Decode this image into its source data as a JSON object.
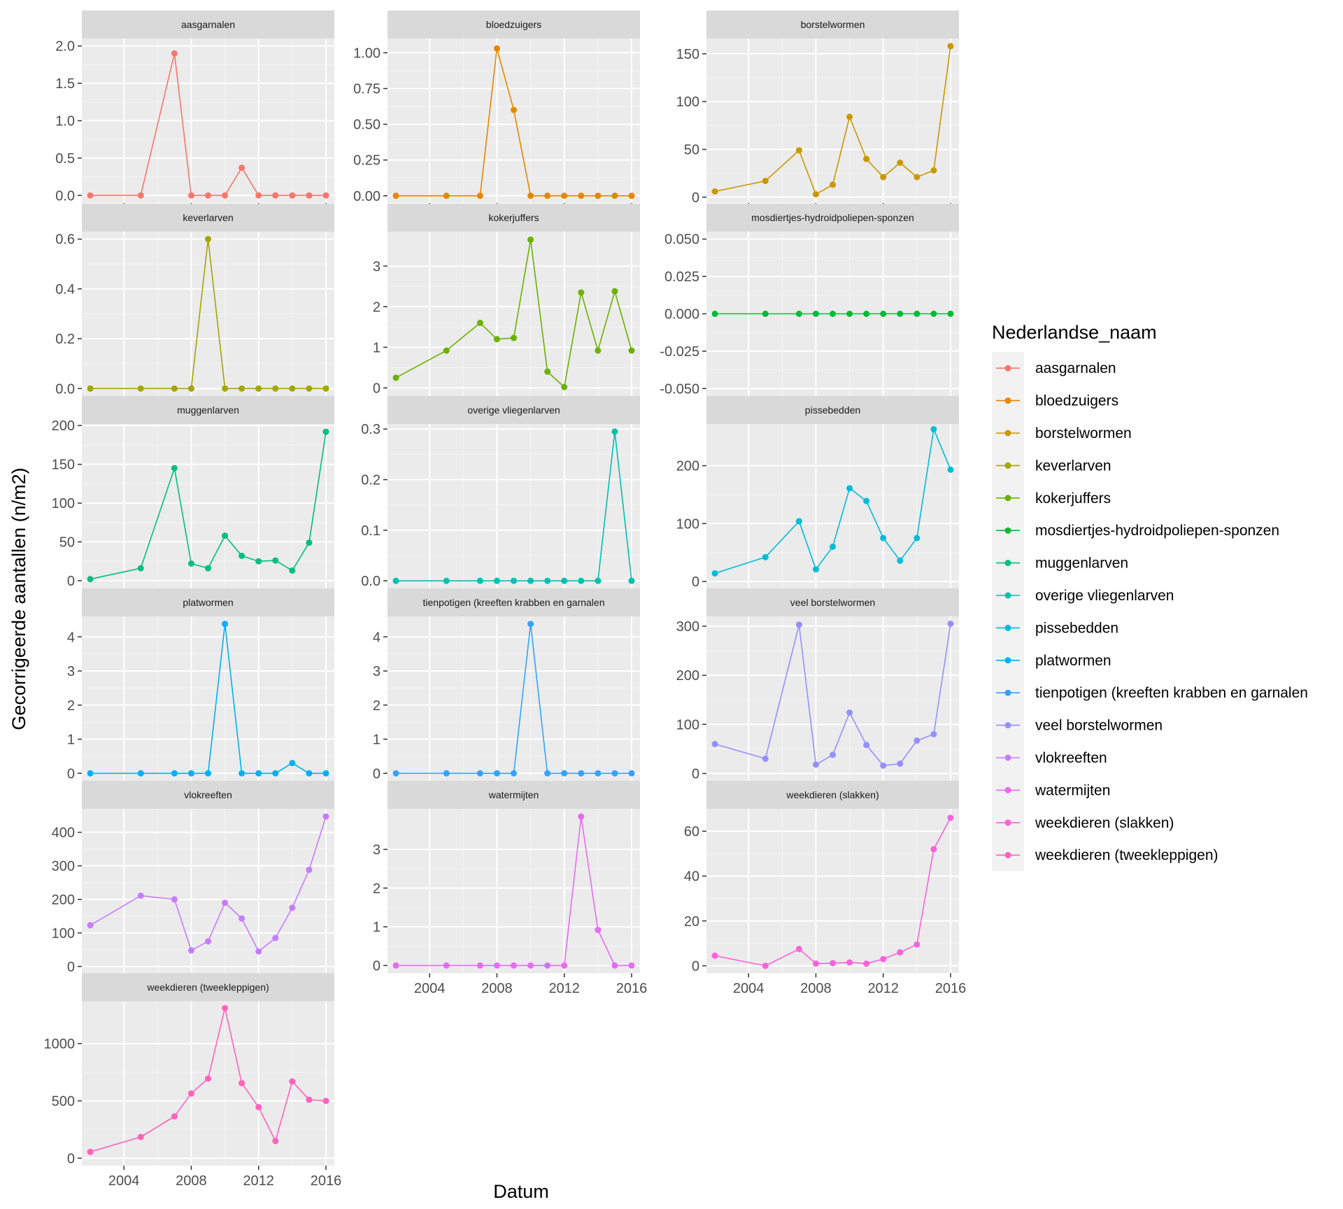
{
  "chart_data": {
    "type": "line",
    "facet": "wrap",
    "x_breaks": [
      2004,
      2008,
      2012,
      2016
    ],
    "xlim": [
      2001.5,
      2016.5
    ],
    "xlabel": "Datum",
    "ylabel": "Gecorrigeerde aantallen (n/m2)",
    "legend": {
      "title": "Nederlandse_naam",
      "position": "right"
    },
    "grid": true,
    "panels": [
      {
        "name": "aasgarnalen",
        "color": "#F8766D",
        "ylim": [
          -0.1,
          2.1
        ],
        "ticks": [
          {
            "v": 0,
            "l": "0.0"
          },
          {
            "v": 0.5,
            "l": "0.5"
          },
          {
            "v": 1,
            "l": "1.0"
          },
          {
            "v": 1.5,
            "l": "1.5"
          },
          {
            "v": 2,
            "l": "2.0"
          }
        ],
        "x": [
          2002,
          2005,
          2007,
          2008,
          2009,
          2010,
          2011,
          2012,
          2013,
          2014,
          2015,
          2016
        ],
        "y": [
          0,
          0,
          1.9,
          0,
          0,
          0,
          0.37,
          0,
          0,
          0,
          0,
          0
        ]
      },
      {
        "name": "bloedzuigers",
        "color": "#E58700",
        "ylim": [
          -0.05,
          1.1
        ],
        "ticks": [
          {
            "v": 0,
            "l": "0.00"
          },
          {
            "v": 0.25,
            "l": "0.25"
          },
          {
            "v": 0.5,
            "l": "0.50"
          },
          {
            "v": 0.75,
            "l": "0.75"
          },
          {
            "v": 1,
            "l": "1.00"
          }
        ],
        "x": [
          2002,
          2005,
          2007,
          2008,
          2009,
          2010,
          2011,
          2012,
          2013,
          2014,
          2015,
          2016
        ],
        "y": [
          0,
          0,
          0,
          1.03,
          0.6,
          0,
          0,
          0,
          0,
          0,
          0,
          0
        ]
      },
      {
        "name": "borstelwormen",
        "color": "#C99800",
        "ylim": [
          -6,
          166
        ],
        "ticks": [
          {
            "v": 0,
            "l": "0"
          },
          {
            "v": 50,
            "l": "50"
          },
          {
            "v": 100,
            "l": "100"
          },
          {
            "v": 150,
            "l": "150"
          }
        ],
        "x": [
          2002,
          2005,
          2007,
          2008,
          2009,
          2010,
          2011,
          2012,
          2013,
          2014,
          2015,
          2016
        ],
        "y": [
          6,
          17,
          49,
          3,
          13,
          84,
          40,
          21,
          36,
          21,
          28,
          158
        ]
      },
      {
        "name": "keverlarven",
        "color": "#A3A500",
        "ylim": [
          -0.03,
          0.63
        ],
        "ticks": [
          {
            "v": 0,
            "l": "0.0"
          },
          {
            "v": 0.2,
            "l": "0.2"
          },
          {
            "v": 0.4,
            "l": "0.4"
          },
          {
            "v": 0.6,
            "l": "0.6"
          }
        ],
        "x": [
          2002,
          2005,
          2007,
          2008,
          2009,
          2010,
          2011,
          2012,
          2013,
          2014,
          2015,
          2016
        ],
        "y": [
          0,
          0,
          0,
          0,
          0.6,
          0,
          0,
          0,
          0,
          0,
          0,
          0
        ]
      },
      {
        "name": "kokerjuffers",
        "color": "#6BB100",
        "ylim": [
          -0.2,
          3.85
        ],
        "ticks": [
          {
            "v": 0,
            "l": "0"
          },
          {
            "v": 1,
            "l": "1"
          },
          {
            "v": 2,
            "l": "2"
          },
          {
            "v": 3,
            "l": "3"
          }
        ],
        "x": [
          2002,
          2005,
          2007,
          2008,
          2009,
          2010,
          2011,
          2012,
          2013,
          2014,
          2015,
          2016
        ],
        "y": [
          0.25,
          0.92,
          1.6,
          1.2,
          1.23,
          3.65,
          0.4,
          0.02,
          2.35,
          0.92,
          2.38,
          0.92
        ]
      },
      {
        "name": "mosdiertjes-hydroidpoliepen-sponzen",
        "color": "#00BA38",
        "ylim": [
          -0.055,
          0.055
        ],
        "ticks": [
          {
            "v": -0.05,
            "l": "-0.050"
          },
          {
            "v": -0.025,
            "l": "-0.025"
          },
          {
            "v": 0,
            "l": "0.000"
          },
          {
            "v": 0.025,
            "l": "0.025"
          },
          {
            "v": 0.05,
            "l": "0.050"
          }
        ],
        "x": [
          2002,
          2005,
          2007,
          2008,
          2009,
          2010,
          2011,
          2012,
          2013,
          2014,
          2015,
          2016
        ],
        "y": [
          0,
          0,
          0,
          0,
          0,
          0,
          0,
          0,
          0,
          0,
          0,
          0
        ]
      },
      {
        "name": "muggenlarven",
        "color": "#00BF7D",
        "ylim": [
          -10,
          202
        ],
        "ticks": [
          {
            "v": 0,
            "l": "0"
          },
          {
            "v": 50,
            "l": "50"
          },
          {
            "v": 100,
            "l": "100"
          },
          {
            "v": 150,
            "l": "150"
          },
          {
            "v": 200,
            "l": "200"
          }
        ],
        "x": [
          2002,
          2005,
          2007,
          2008,
          2009,
          2010,
          2011,
          2012,
          2013,
          2014,
          2015,
          2016
        ],
        "y": [
          2,
          16,
          145,
          22,
          16,
          58,
          32,
          25,
          26,
          13,
          49,
          192
        ]
      },
      {
        "name": "overige vliegenlarven",
        "color": "#00C0AF",
        "ylim": [
          -0.015,
          0.31
        ],
        "ticks": [
          {
            "v": 0,
            "l": "0.0"
          },
          {
            "v": 0.1,
            "l": "0.1"
          },
          {
            "v": 0.2,
            "l": "0.2"
          },
          {
            "v": 0.3,
            "l": "0.3"
          }
        ],
        "x": [
          2002,
          2005,
          2007,
          2008,
          2009,
          2010,
          2011,
          2012,
          2013,
          2014,
          2015,
          2016
        ],
        "y": [
          0,
          0,
          0,
          0,
          0,
          0,
          0,
          0,
          0,
          0,
          0.295,
          0
        ]
      },
      {
        "name": "pissebedden",
        "color": "#00BCD8",
        "ylim": [
          -12,
          272
        ],
        "ticks": [
          {
            "v": 0,
            "l": "0"
          },
          {
            "v": 100,
            "l": "100"
          },
          {
            "v": 200,
            "l": "200"
          }
        ],
        "x": [
          2002,
          2005,
          2007,
          2008,
          2009,
          2010,
          2011,
          2012,
          2013,
          2014,
          2015,
          2016
        ],
        "y": [
          14,
          42,
          104,
          21,
          60,
          161,
          139,
          75,
          36,
          75,
          263,
          193
        ]
      },
      {
        "name": "platwormen",
        "color": "#00B0F6",
        "ylim": [
          -0.22,
          4.6
        ],
        "ticks": [
          {
            "v": 0,
            "l": "0"
          },
          {
            "v": 1,
            "l": "1"
          },
          {
            "v": 2,
            "l": "2"
          },
          {
            "v": 3,
            "l": "3"
          },
          {
            "v": 4,
            "l": "4"
          }
        ],
        "x": [
          2002,
          2005,
          2007,
          2008,
          2009,
          2010,
          2011,
          2012,
          2013,
          2014,
          2015,
          2016
        ],
        "y": [
          0,
          0,
          0,
          0,
          0,
          4.38,
          0,
          0,
          0,
          0.3,
          0,
          0
        ]
      },
      {
        "name": "tienpotigen (kreeften krabben en garnalen",
        "color": "#35A2FF",
        "ylim": [
          -0.22,
          4.6
        ],
        "ticks": [
          {
            "v": 0,
            "l": "0"
          },
          {
            "v": 1,
            "l": "1"
          },
          {
            "v": 2,
            "l": "2"
          },
          {
            "v": 3,
            "l": "3"
          },
          {
            "v": 4,
            "l": "4"
          }
        ],
        "x": [
          2002,
          2005,
          2007,
          2008,
          2009,
          2010,
          2011,
          2012,
          2013,
          2014,
          2015,
          2016
        ],
        "y": [
          0,
          0,
          0,
          0,
          0,
          4.38,
          0,
          0,
          0,
          0,
          0,
          0
        ]
      },
      {
        "name": "veel borstelwormen",
        "color": "#9590FF",
        "ylim": [
          -15,
          320
        ],
        "ticks": [
          {
            "v": 0,
            "l": "0"
          },
          {
            "v": 100,
            "l": "100"
          },
          {
            "v": 200,
            "l": "200"
          },
          {
            "v": 300,
            "l": "300"
          }
        ],
        "x": [
          2002,
          2005,
          2007,
          2008,
          2009,
          2010,
          2011,
          2012,
          2013,
          2014,
          2015,
          2016
        ],
        "y": [
          60,
          30,
          303,
          18,
          38,
          124,
          58,
          16,
          20,
          67,
          80,
          305
        ]
      },
      {
        "name": "vlokreeften",
        "color": "#C77CFF",
        "ylim": [
          -20,
          470
        ],
        "ticks": [
          {
            "v": 0,
            "l": "0"
          },
          {
            "v": 100,
            "l": "100"
          },
          {
            "v": 200,
            "l": "200"
          },
          {
            "v": 300,
            "l": "300"
          },
          {
            "v": 400,
            "l": "400"
          }
        ],
        "x": [
          2002,
          2005,
          2007,
          2008,
          2009,
          2010,
          2011,
          2012,
          2013,
          2014,
          2015,
          2016
        ],
        "y": [
          123,
          211,
          200,
          48,
          75,
          190,
          143,
          45,
          85,
          175,
          288,
          447
        ]
      },
      {
        "name": "watermijten",
        "color": "#E76BF3",
        "ylim": [
          -0.2,
          4.05
        ],
        "ticks": [
          {
            "v": 0,
            "l": "0"
          },
          {
            "v": 1,
            "l": "1"
          },
          {
            "v": 2,
            "l": "2"
          },
          {
            "v": 3,
            "l": "3"
          }
        ],
        "x": [
          2002,
          2005,
          2007,
          2008,
          2009,
          2010,
          2011,
          2012,
          2013,
          2014,
          2015,
          2016
        ],
        "y": [
          0,
          0,
          0,
          0,
          0,
          0,
          0,
          0,
          3.85,
          0.92,
          0,
          0
        ]
      },
      {
        "name": "weekdieren (slakken)",
        "color": "#FA62DB",
        "ylim": [
          -3.3,
          70
        ],
        "ticks": [
          {
            "v": 0,
            "l": "0"
          },
          {
            "v": 20,
            "l": "20"
          },
          {
            "v": 40,
            "l": "40"
          },
          {
            "v": 60,
            "l": "60"
          }
        ],
        "x": [
          2002,
          2005,
          2007,
          2008,
          2009,
          2010,
          2011,
          2012,
          2013,
          2014,
          2015,
          2016
        ],
        "y": [
          4.5,
          0,
          7.5,
          1,
          1.2,
          1.5,
          1,
          3,
          6,
          9.5,
          52,
          66
        ]
      },
      {
        "name": "weekdieren (tweekleppigen)",
        "color": "#FF62BC",
        "ylim": [
          -65,
          1370
        ],
        "ticks": [
          {
            "v": 0,
            "l": "0"
          },
          {
            "v": 500,
            "l": "500"
          },
          {
            "v": 1000,
            "l": "1000"
          }
        ],
        "x": [
          2002,
          2005,
          2007,
          2008,
          2009,
          2010,
          2011,
          2012,
          2013,
          2014,
          2015,
          2016
        ],
        "y": [
          55,
          185,
          365,
          565,
          695,
          1310,
          655,
          445,
          150,
          670,
          510,
          500
        ]
      }
    ]
  }
}
